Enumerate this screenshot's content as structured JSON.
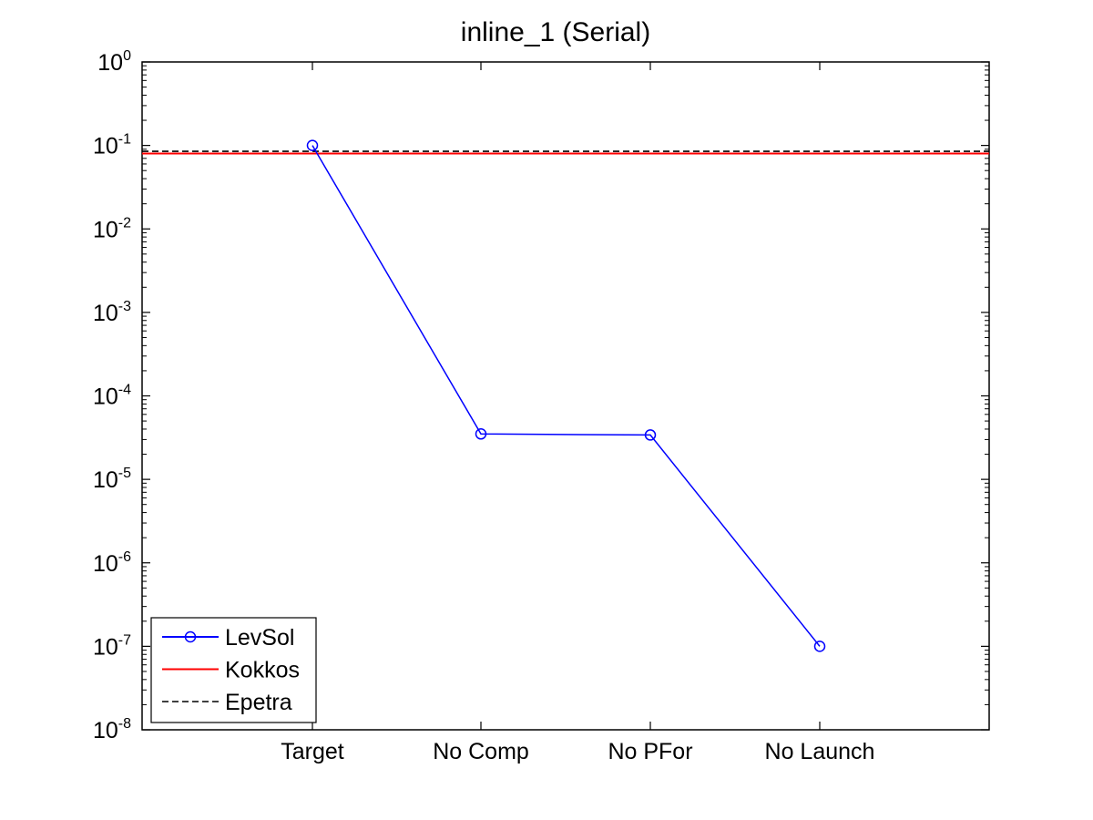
{
  "chart_data": {
    "type": "line",
    "title": "inline_1 (Serial)",
    "xlabel": "",
    "ylabel": "",
    "categories": [
      "Target",
      "No Comp",
      "No PFor",
      "No Launch"
    ],
    "yscale": "log",
    "ylim": [
      1e-08,
      1
    ],
    "y_ticks": [
      {
        "base": "10",
        "exp": "0"
      },
      {
        "base": "10",
        "exp": "-1"
      },
      {
        "base": "10",
        "exp": "-2"
      },
      {
        "base": "10",
        "exp": "-3"
      },
      {
        "base": "10",
        "exp": "-4"
      },
      {
        "base": "10",
        "exp": "-5"
      },
      {
        "base": "10",
        "exp": "-6"
      },
      {
        "base": "10",
        "exp": "-7"
      },
      {
        "base": "10",
        "exp": "-8"
      }
    ],
    "series": [
      {
        "name": "LevSol",
        "values": [
          0.1,
          3.5e-05,
          3.4e-05,
          1e-07
        ],
        "color": "#0000ff",
        "marker": "circle",
        "linestyle": "solid"
      },
      {
        "name": "Kokkos",
        "constant": 0.08,
        "color": "#ff0000",
        "linestyle": "solid"
      },
      {
        "name": "Epetra",
        "constant": 0.085,
        "color": "#000000",
        "linestyle": "dashed"
      }
    ],
    "legend_position": "bottom-left",
    "grid": false
  }
}
